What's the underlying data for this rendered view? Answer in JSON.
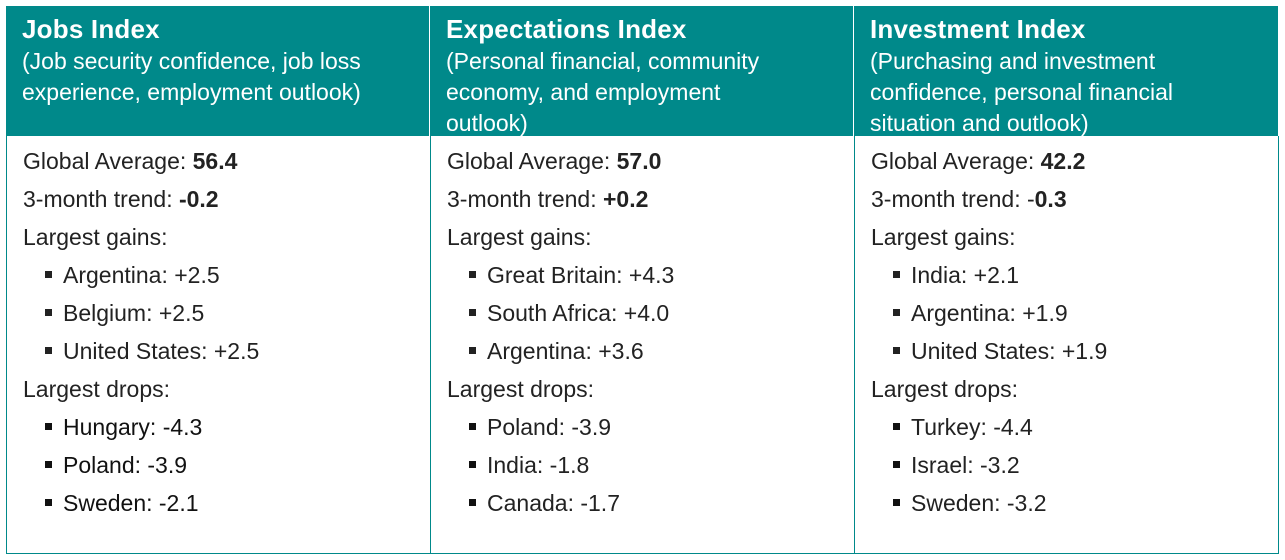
{
  "columns": [
    {
      "title": "Jobs Index",
      "subtitle_lines": [
        "(Job security confidence, job loss",
        "experience, employment outlook)",
        ""
      ],
      "global_average_label": "Global Average: ",
      "global_average_value": "56.4",
      "trend_label": "3-month trend: ",
      "trend_value": "-0.2",
      "gains_label": "Largest gains:",
      "gains": [
        "Argentina: +2.5",
        "Belgium: +2.5",
        "United States: +2.5"
      ],
      "drops_label": "Largest drops:",
      "drops": [
        "Hungary: -4.3",
        "Poland: -3.9",
        "Sweden: -2.1"
      ]
    },
    {
      "title": "Expectations Index",
      "subtitle_lines": [
        "(Personal financial, community",
        "economy, and employment",
        "outlook)"
      ],
      "global_average_label": "Global Average: ",
      "global_average_value": "57.0",
      "trend_label": "3-month trend: ",
      "trend_value": "+0.2",
      "gains_label": "Largest gains:",
      "gains": [
        "Great Britain: +4.3",
        "South Africa: +4.0",
        "Argentina: +3.6"
      ],
      "drops_label": "Largest drops:",
      "drops": [
        "Poland: -3.9",
        "India: -1.8",
        "Canada: -1.7"
      ]
    },
    {
      "title": "Investment Index",
      "subtitle_lines": [
        "(Purchasing and investment",
        "confidence, personal financial",
        "situation and outlook)"
      ],
      "global_average_label": "Global Average: ",
      "global_average_value": "42.2",
      "trend_label": "3-month trend: -",
      "trend_value": "0.3",
      "gains_label": "Largest gains:",
      "gains": [
        "India: +2.1",
        "Argentina: +1.9",
        "United States: +1.9"
      ],
      "drops_label": "Largest drops:",
      "drops": [
        "Turkey: -4.4",
        "Israel: -3.2",
        "Sweden: -3.2"
      ]
    }
  ]
}
